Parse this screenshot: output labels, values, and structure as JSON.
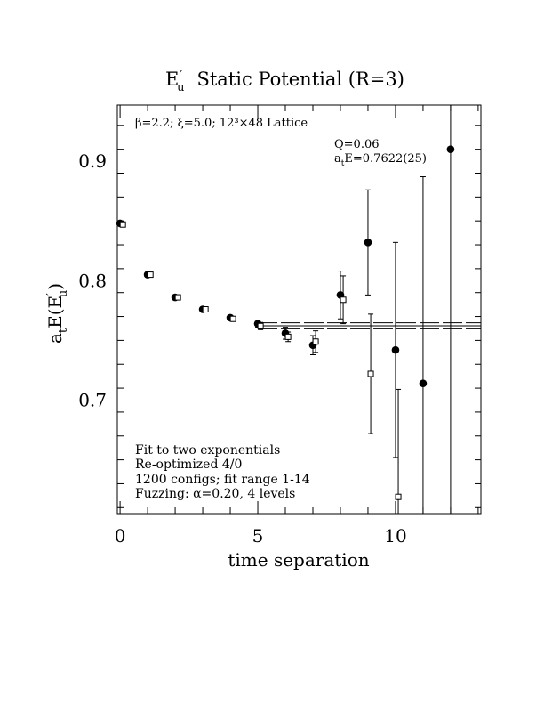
{
  "chart_data": {
    "type": "scatter",
    "title_main": "E",
    "title_sub": "u",
    "title_prime": "′",
    "title_rest": "Static Potential (R=3)",
    "xlabel": "time separation",
    "ylabel_a": "a",
    "ylabel_t": "t",
    "ylabel_e": "E(E",
    "ylabel_prime": "′",
    "ylabel_u": "u",
    "ylabel_close": ")",
    "xlim": [
      -0.1,
      13.1
    ],
    "ylim": [
      0.605,
      0.947
    ],
    "x_ticks": [
      0,
      5,
      10
    ],
    "y_ticks": [
      0.7,
      0.8,
      0.9
    ],
    "x_tick_labels": [
      "0",
      "5",
      "10"
    ],
    "y_tick_labels": [
      "0.7",
      "0.8",
      "0.9"
    ],
    "lattice_label": "β=2.2; ξ=5.0; 12³×48 Lattice",
    "fit_q": "Q=0.06",
    "fit_energy_prefix": "a",
    "fit_energy_sub": "t",
    "fit_energy_rest": "E=0.7622(25)",
    "notes": [
      "Fit to two exponentials",
      "Re-optimized 4/0",
      "1200 configs; fit range 1-14",
      "Fuzzing: α=0.20, 4 levels"
    ],
    "fit": {
      "value": 0.7622,
      "error": 0.0025,
      "x_range": [
        5,
        13.1
      ]
    },
    "series": [
      {
        "marker": "filled-circle",
        "points": [
          {
            "x": 0,
            "y": 0.848,
            "err": 0.002
          },
          {
            "x": 1,
            "y": 0.805,
            "err": 0.002
          },
          {
            "x": 2,
            "y": 0.786,
            "err": 0.002
          },
          {
            "x": 3,
            "y": 0.776,
            "err": 0.002
          },
          {
            "x": 4,
            "y": 0.769,
            "err": 0.002
          },
          {
            "x": 5,
            "y": 0.764,
            "err": 0.003
          },
          {
            "x": 6,
            "y": 0.756,
            "err": 0.005
          },
          {
            "x": 7,
            "y": 0.746,
            "err": 0.008
          },
          {
            "x": 8,
            "y": 0.788,
            "err": 0.02
          },
          {
            "x": 9,
            "y": 0.832,
            "err": 0.044
          },
          {
            "x": 10,
            "y": 0.742,
            "err": 0.09
          },
          {
            "x": 11,
            "y": 0.714,
            "err": 0.173
          },
          {
            "x": 12,
            "y": 0.91,
            "err": 0.5
          }
        ]
      },
      {
        "marker": "open-square",
        "points": [
          {
            "x": 0.1,
            "y": 0.847,
            "err": 0.002
          },
          {
            "x": 1.1,
            "y": 0.805,
            "err": 0.002
          },
          {
            "x": 2.1,
            "y": 0.786,
            "err": 0.002
          },
          {
            "x": 3.1,
            "y": 0.776,
            "err": 0.002
          },
          {
            "x": 4.1,
            "y": 0.768,
            "err": 0.002
          },
          {
            "x": 5.1,
            "y": 0.762,
            "err": 0.003
          },
          {
            "x": 6.1,
            "y": 0.753,
            "err": 0.004
          },
          {
            "x": 7.1,
            "y": 0.749,
            "err": 0.009
          },
          {
            "x": 8.1,
            "y": 0.784,
            "err": 0.02
          },
          {
            "x": 9.1,
            "y": 0.722,
            "err": 0.05
          },
          {
            "x": 10.1,
            "y": 0.619,
            "err": 0.09
          }
        ]
      }
    ]
  }
}
